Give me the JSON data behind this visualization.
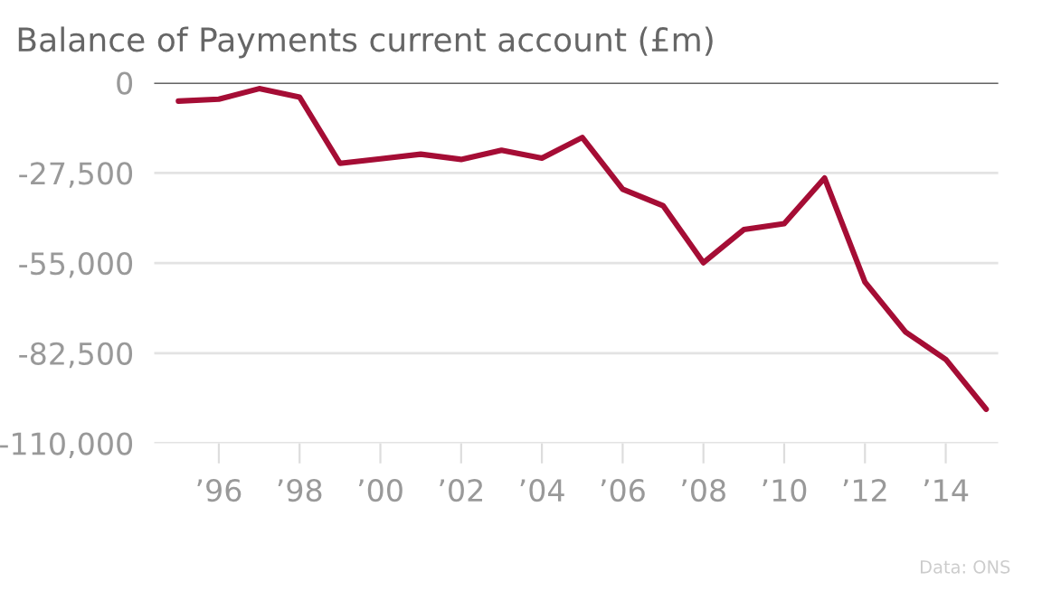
{
  "chart_data": {
    "type": "line",
    "title": "Balance of Payments current account (£m)",
    "x": [
      1995,
      1996,
      1997,
      1998,
      1999,
      2000,
      2001,
      2002,
      2003,
      2004,
      2005,
      2006,
      2007,
      2008,
      2009,
      2010,
      2011,
      2012,
      2013,
      2014,
      2015
    ],
    "series": [
      {
        "color": "#a50d35",
        "values": [
          -5600,
          -5000,
          -1800,
          -4400,
          -24600,
          -23200,
          -21800,
          -23400,
          -20600,
          -23000,
          -16700,
          -32500,
          -37500,
          -54900,
          -44800,
          -43000,
          -29100,
          -60800,
          -76000,
          -84400,
          -99600
        ]
      }
    ],
    "xlim": [
      1994.4,
      2015.3
    ],
    "xticks": [
      {
        "value": 1996,
        "label": "’96"
      },
      {
        "value": 1998,
        "label": "’98"
      },
      {
        "value": 2000,
        "label": "’00"
      },
      {
        "value": 2002,
        "label": "’02"
      },
      {
        "value": 2004,
        "label": "’04"
      },
      {
        "value": 2006,
        "label": "’06"
      },
      {
        "value": 2008,
        "label": "’08"
      },
      {
        "value": 2010,
        "label": "’10"
      },
      {
        "value": 2012,
        "label": "’12"
      },
      {
        "value": 2014,
        "label": "’14"
      }
    ],
    "ylim": [
      -110000,
      0
    ],
    "yticks": [
      {
        "value": 0,
        "label": "0"
      },
      {
        "value": -27500,
        "label": "-27,500"
      },
      {
        "value": -55000,
        "label": "-55,000"
      },
      {
        "value": -82500,
        "label": "-82,500"
      },
      {
        "value": -110000,
        "label": "-110,000"
      }
    ],
    "grid": "y",
    "ref_lines": [
      {
        "axis": "y",
        "value": 0,
        "color": "#666666"
      }
    ],
    "annotations": [
      "Data: ONS"
    ]
  }
}
